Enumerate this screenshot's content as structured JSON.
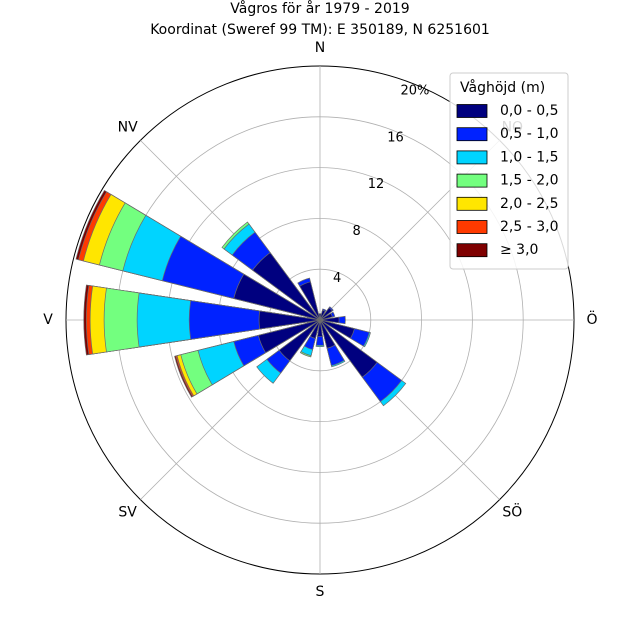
{
  "chart_data": {
    "type": "windrose",
    "title": "Vågros för år 1979 - 2019",
    "subtitle": "Koordinat (Sweref 99 TM): E 350189, N 6251601",
    "directions": [
      "N",
      "NO",
      "Ö",
      "SÖ",
      "S",
      "SV",
      "V",
      "NV"
    ],
    "radial_ticks": [
      "4",
      "8",
      "12",
      "16",
      "20%"
    ],
    "radial_tick_values": [
      4,
      8,
      12,
      16,
      20
    ],
    "rmax": 20,
    "legend": {
      "title": "Våghöjd (m)",
      "placement": "top-right",
      "bins": [
        "0,0 - 0,5",
        "0,5 - 1,0",
        "1,0 - 1,5",
        "1,5 - 2,0",
        "2,0 - 2,5",
        "2,5 - 3,0",
        "≥ 3,0"
      ]
    },
    "colors": [
      "#00007f",
      "#0022ff",
      "#00d4ff",
      "#73ff7f",
      "#ffe600",
      "#ff3a00",
      "#7f0000"
    ],
    "sector_bearings": [
      0,
      22.5,
      45,
      67.5,
      90,
      112.5,
      135,
      157.5,
      180,
      202.5,
      225,
      247.5,
      270,
      292.5,
      315,
      337.5
    ],
    "series_cumulative": [
      {
        "bearing": 0,
        "values": [
          0.5,
          0.5,
          0.5,
          0.5,
          0.5,
          0.5,
          0.5
        ]
      },
      {
        "bearing": 22.5,
        "values": [
          0.8,
          0.9,
          0.9,
          0.9,
          0.9,
          0.9,
          0.9
        ]
      },
      {
        "bearing": 45,
        "values": [
          1.2,
          1.3,
          1.3,
          1.3,
          1.3,
          1.3,
          1.3
        ]
      },
      {
        "bearing": 67.5,
        "values": [
          1.0,
          1.2,
          1.2,
          1.2,
          1.2,
          1.2,
          1.2
        ]
      },
      {
        "bearing": 90,
        "values": [
          1.5,
          2.0,
          2.0,
          2.0,
          2.0,
          2.0,
          2.0
        ]
      },
      {
        "bearing": 112.5,
        "values": [
          2.8,
          4.0,
          4.1,
          4.1,
          4.1,
          4.1,
          4.1
        ]
      },
      {
        "bearing": 135,
        "values": [
          5.6,
          8.0,
          8.4,
          8.4,
          8.4,
          8.4,
          8.4
        ]
      },
      {
        "bearing": 157.5,
        "values": [
          2.3,
          3.7,
          3.8,
          3.8,
          3.8,
          3.8,
          3.8
        ]
      },
      {
        "bearing": 180,
        "values": [
          1.3,
          2.0,
          2.1,
          2.1,
          2.1,
          2.1,
          2.1
        ]
      },
      {
        "bearing": 202.5,
        "values": [
          1.5,
          2.4,
          2.9,
          3.0,
          3.0,
          3.0,
          3.0
        ]
      },
      {
        "bearing": 225,
        "values": [
          4.0,
          5.2,
          6.2,
          6.2,
          6.2,
          6.2,
          6.2
        ]
      },
      {
        "bearing": 247.5,
        "values": [
          5.0,
          7.0,
          9.9,
          11.3,
          11.6,
          11.7,
          11.8
        ]
      },
      {
        "bearing": 270,
        "values": [
          4.8,
          10.3,
          14.4,
          17.0,
          18.1,
          18.4,
          18.6
        ]
      },
      {
        "bearing": 292.5,
        "values": [
          7.0,
          12.8,
          16.0,
          17.9,
          19.2,
          19.6,
          19.8
        ]
      },
      {
        "bearing": 315,
        "values": [
          6.6,
          8.6,
          9.4,
          9.6,
          9.6,
          9.6,
          9.6
        ]
      },
      {
        "bearing": 337.5,
        "values": [
          3.1,
          3.4,
          3.4,
          3.4,
          3.4,
          3.4,
          3.4
        ]
      }
    ]
  }
}
